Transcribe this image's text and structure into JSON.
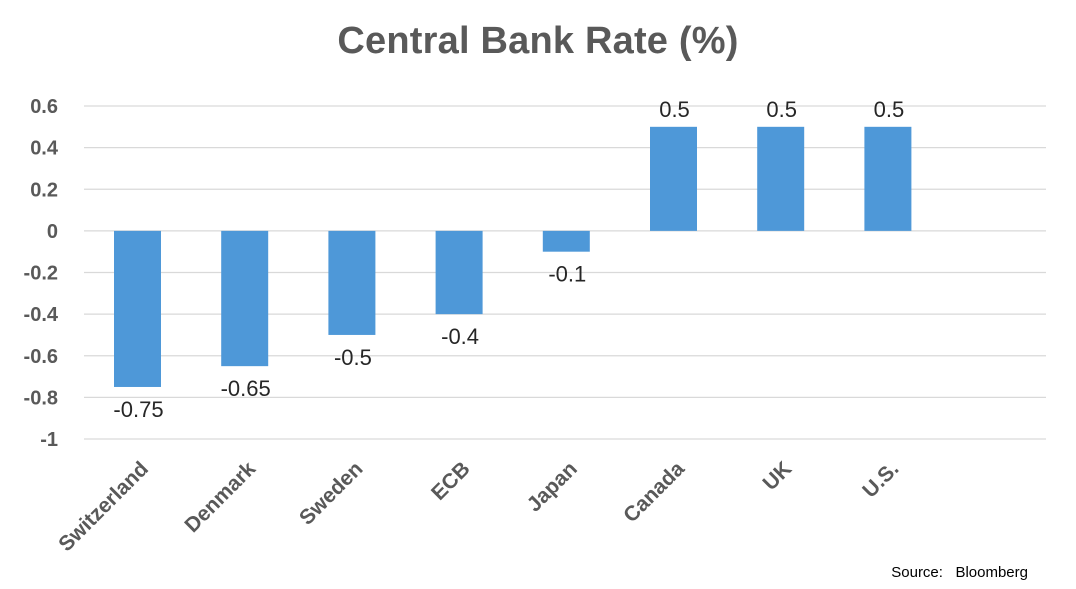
{
  "chart_data": {
    "type": "bar",
    "title": "Central Bank Rate (%)",
    "categories": [
      "Switzerland",
      "Denmark",
      "Sweden",
      "ECB",
      "Japan",
      "Canada",
      "UK",
      "U.S."
    ],
    "values": [
      -0.75,
      -0.65,
      -0.5,
      -0.4,
      -0.1,
      0.5,
      0.5,
      0.5
    ],
    "data_labels": [
      "-0.75",
      "-0.65",
      "-0.5",
      "-0.4",
      "-0.1",
      "0.5",
      "0.5",
      "0.5"
    ],
    "yticks": [
      "0.6",
      "0.4",
      "0.2",
      "0",
      "-0.2",
      "-0.4",
      "-0.6",
      "-0.8",
      "-1"
    ],
    "ylim": [
      -1,
      0.6
    ],
    "xlabel": "",
    "ylabel": "",
    "grid": true,
    "legend": "none",
    "bar_color": "#4E98D8",
    "grid_color": "#D9D9D9"
  },
  "source_note": "Source:   Bloomberg"
}
